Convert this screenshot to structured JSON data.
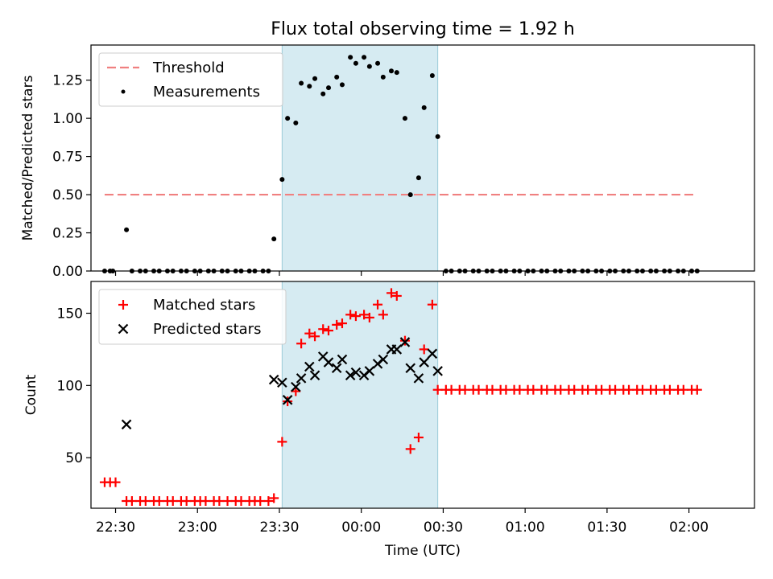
{
  "title": "Flux total observing time = 1.92 h",
  "xlabel": "Time (UTC)",
  "x_ticks": [
    "22:30",
    "23:00",
    "23:30",
    "00:00",
    "00:30",
    "01:00",
    "01:30",
    "02:00"
  ],
  "x_tick_minutes": [
    1350,
    1380,
    1410,
    1440,
    1470,
    1500,
    1530,
    1560
  ],
  "xlim_minutes": [
    1341,
    1584
  ],
  "colors": {
    "threshold": "#f08080",
    "measurements": "#000000",
    "matched": "#ff0000",
    "predicted": "#000000",
    "shade": "#add8e6"
  },
  "chart_data": [
    {
      "type": "scatter",
      "ylabel": "Matched/Predicted stars",
      "ylim": [
        0,
        1.48
      ],
      "y_ticks": [
        0.0,
        0.25,
        0.5,
        0.75,
        1.0,
        1.25
      ],
      "y_tick_labels": [
        "0.00",
        "0.25",
        "0.50",
        "0.75",
        "1.00",
        "1.25"
      ],
      "shaded_region_minutes": [
        1411,
        1468
      ],
      "legend_position": "top-left",
      "threshold": {
        "name": "Threshold",
        "y": 0.5,
        "x_range_minutes": [
          1346,
          1563
        ]
      },
      "series": [
        {
          "name": "Measurements",
          "marker": "dot",
          "x_minutes": [
            1346,
            1348,
            1349,
            1354,
            1356,
            1359,
            1361,
            1364,
            1366,
            1369,
            1371,
            1374,
            1376,
            1379,
            1381,
            1384,
            1386,
            1389,
            1391,
            1394,
            1396,
            1399,
            1401,
            1404,
            1406,
            1408,
            1411,
            1413,
            1416,
            1418,
            1421,
            1423,
            1426,
            1428,
            1431,
            1433,
            1436,
            1438,
            1441,
            1443,
            1446,
            1448,
            1451,
            1453,
            1456,
            1458,
            1461,
            1463,
            1466,
            1468,
            1471,
            1473,
            1476,
            1478,
            1481,
            1483,
            1486,
            1488,
            1491,
            1493,
            1496,
            1498,
            1501,
            1503,
            1506,
            1508,
            1511,
            1513,
            1516,
            1518,
            1521,
            1523,
            1526,
            1528,
            1531,
            1533,
            1536,
            1538,
            1541,
            1543,
            1546,
            1548,
            1551,
            1553,
            1556,
            1558,
            1561,
            1563
          ],
          "y": [
            0.0,
            0.0,
            0.0,
            0.27,
            0.0,
            0.0,
            0.0,
            0.0,
            0.0,
            0.0,
            0.0,
            0.0,
            0.0,
            0.0,
            0.0,
            0.0,
            0.0,
            0.0,
            0.0,
            0.0,
            0.0,
            0.0,
            0.0,
            0.0,
            0.0,
            0.21,
            0.6,
            1.0,
            0.97,
            1.23,
            1.21,
            1.26,
            1.16,
            1.2,
            1.27,
            1.22,
            1.4,
            1.36,
            1.4,
            1.34,
            1.36,
            1.27,
            1.31,
            1.3,
            1.0,
            0.5,
            0.61,
            1.07,
            1.28,
            0.88,
            0.0,
            0.0,
            0.0,
            0.0,
            0.0,
            0.0,
            0.0,
            0.0,
            0.0,
            0.0,
            0.0,
            0.0,
            0.0,
            0.0,
            0.0,
            0.0,
            0.0,
            0.0,
            0.0,
            0.0,
            0.0,
            0.0,
            0.0,
            0.0,
            0.0,
            0.0,
            0.0,
            0.0,
            0.0,
            0.0,
            0.0,
            0.0,
            0.0,
            0.0,
            0.0,
            0.0,
            0.0,
            0.0
          ]
        }
      ]
    },
    {
      "type": "scatter",
      "ylabel": "Count",
      "ylim": [
        15,
        172
      ],
      "y_ticks": [
        50,
        100,
        150
      ],
      "y_tick_labels": [
        "50",
        "100",
        "150"
      ],
      "shaded_region_minutes": [
        1411,
        1468
      ],
      "legend_position": "top-left",
      "series": [
        {
          "name": "Matched stars",
          "marker": "plus",
          "x_minutes": [
            1346,
            1348,
            1350,
            1354,
            1356,
            1359,
            1361,
            1364,
            1366,
            1369,
            1371,
            1374,
            1376,
            1379,
            1381,
            1383,
            1386,
            1388,
            1391,
            1394,
            1396,
            1399,
            1401,
            1403,
            1406,
            1408,
            1411,
            1413,
            1416,
            1418,
            1421,
            1423,
            1426,
            1428,
            1431,
            1433,
            1436,
            1438,
            1441,
            1443,
            1446,
            1448,
            1451,
            1453,
            1456,
            1458,
            1461,
            1463,
            1466,
            1468,
            1471,
            1473,
            1476,
            1478,
            1481,
            1483,
            1486,
            1488,
            1491,
            1493,
            1496,
            1498,
            1501,
            1503,
            1506,
            1508,
            1511,
            1513,
            1516,
            1518,
            1521,
            1523,
            1526,
            1528,
            1531,
            1533,
            1536,
            1538,
            1541,
            1543,
            1546,
            1548,
            1551,
            1553,
            1556,
            1558,
            1561,
            1563
          ],
          "y": [
            33,
            33,
            33,
            20,
            20,
            20,
            20,
            20,
            20,
            20,
            20,
            20,
            20,
            20,
            20,
            20,
            20,
            20,
            20,
            20,
            20,
            20,
            20,
            20,
            20,
            22,
            61,
            89,
            96,
            129,
            136,
            134,
            139,
            138,
            142,
            143,
            149,
            148,
            149,
            147,
            156,
            149,
            164,
            162,
            131,
            56,
            64,
            125,
            156,
            97,
            97,
            97,
            97,
            97,
            97,
            97,
            97,
            97,
            97,
            97,
            97,
            97,
            97,
            97,
            97,
            97,
            97,
            97,
            97,
            97,
            97,
            97,
            97,
            97,
            97,
            97,
            97,
            97,
            97,
            97,
            97,
            97,
            97,
            97,
            97,
            97,
            97,
            97
          ]
        },
        {
          "name": "Predicted stars",
          "marker": "x",
          "x_minutes": [
            1354,
            1408,
            1411,
            1413,
            1416,
            1418,
            1421,
            1423,
            1426,
            1428,
            1431,
            1433,
            1436,
            1438,
            1441,
            1443,
            1446,
            1448,
            1451,
            1453,
            1456,
            1458,
            1461,
            1463,
            1466,
            1468
          ],
          "y": [
            73,
            104,
            102,
            90,
            99,
            105,
            113,
            107,
            120,
            116,
            112,
            118,
            107,
            109,
            107,
            110,
            115,
            118,
            125,
            125,
            130,
            112,
            105,
            116,
            122,
            110
          ]
        }
      ]
    }
  ]
}
